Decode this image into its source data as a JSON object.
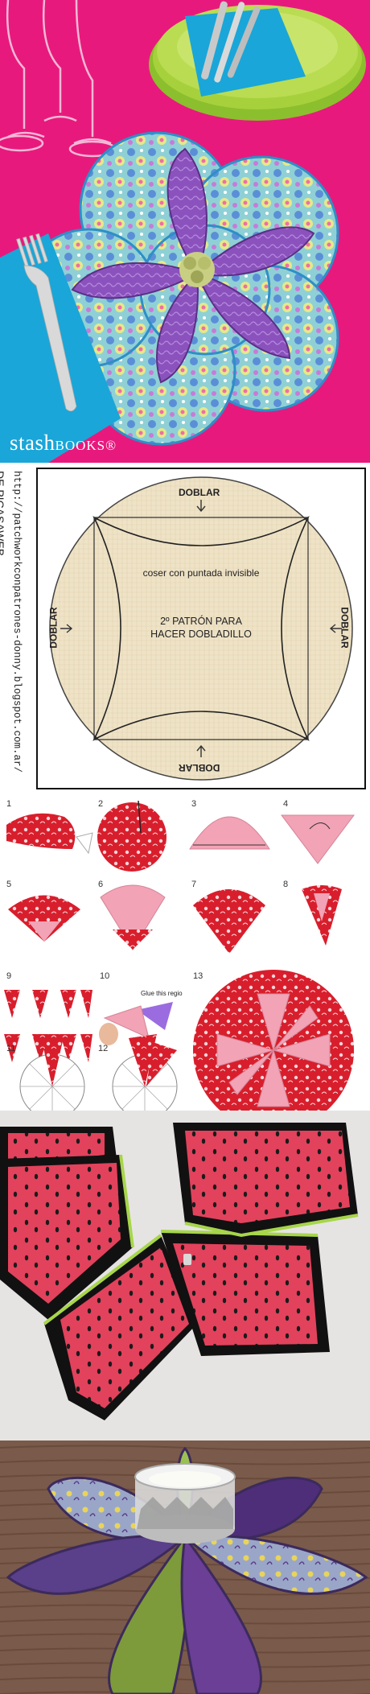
{
  "panel1": {
    "brand_main": "stash",
    "brand_sub": "BOOKS",
    "brand_mark": "®"
  },
  "panel2": {
    "side_text_1": "DE PICASAWEB",
    "side_text_2": "http://patchworkconpatrones-donny.blogspot.com.ar/",
    "fold_top": "DOBLAR",
    "fold_left": "DOBLAR",
    "fold_right": "DOBLAR",
    "fold_bottom": "DOBLAR",
    "sew_note": "coser con puntada invisible",
    "pattern_title_1": "2º PATRÓN PARA",
    "pattern_title_2": "HACER DOBLADILLO"
  },
  "panel3": {
    "steps": [
      "1",
      "2",
      "3",
      "4",
      "5",
      "6",
      "7",
      "8",
      "9",
      "10",
      "11",
      "12",
      "13"
    ],
    "glue_note": "Glue this regio"
  },
  "colors": {
    "tablecloth": "#e8197d",
    "napkin": "#1aa6d8",
    "petal": "#8a4fb8",
    "fabric_red": "#d81e2c",
    "fabric_pink": "#f2a3b6",
    "watermelon": "#e2425c",
    "pattern_paper": "#efe3c7"
  }
}
